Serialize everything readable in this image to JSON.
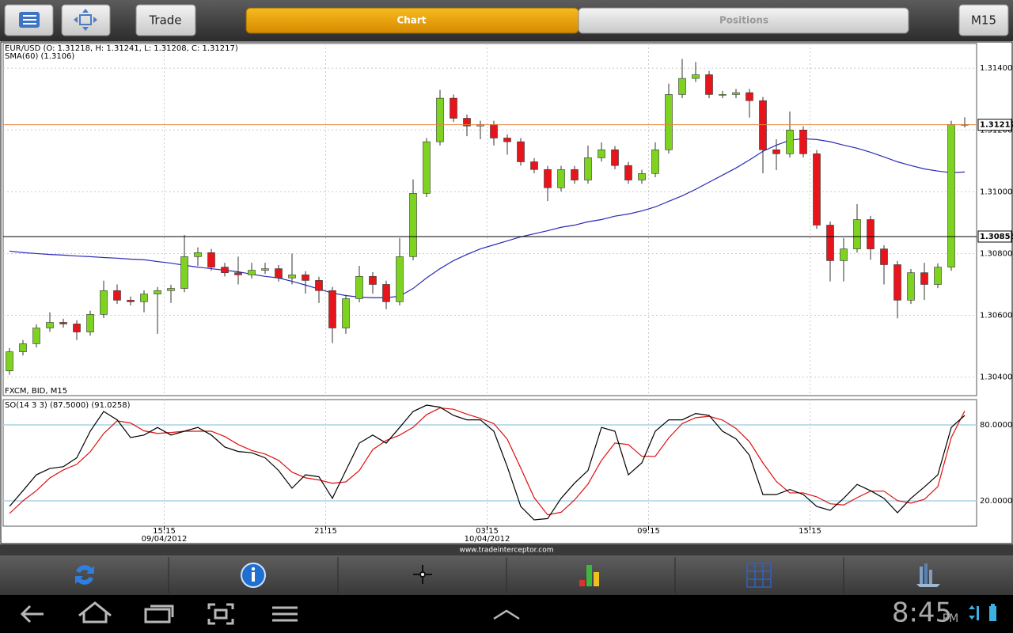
{
  "toolbar": {
    "trade": "Trade",
    "tabs": [
      "Chart",
      "Positions"
    ],
    "timeframe": "M15"
  },
  "chart_data": [
    {
      "type": "candlestick",
      "title": "EUR/USD (O: 1.31218, H: 1.31241, L: 1.31208, C: 1.31217)",
      "subtitle": "SMA(60) (1.3106)",
      "note": "FXCM, BID, M15",
      "open": [
        1.3042,
        1.30482,
        1.30508,
        1.30559,
        1.30577,
        1.30572,
        1.30546,
        1.30603,
        1.3068,
        1.30649,
        1.30644,
        1.30669,
        1.3068,
        1.30687,
        1.3079,
        1.30803,
        1.30756,
        1.30738,
        1.30731,
        1.30746,
        1.30751,
        1.30721,
        1.30731,
        1.30713,
        1.3068,
        1.30559,
        1.30654,
        1.30726,
        1.307,
        1.30644,
        1.3079,
        1.30995,
        1.31162,
        1.31303,
        1.31238,
        1.31213,
        1.31218,
        1.31174,
        1.31162,
        1.31097,
        1.31072,
        1.31013,
        1.31072,
        1.31038,
        1.3111,
        1.31136,
        1.31085,
        1.31038,
        1.31059,
        1.31136,
        1.31315,
        1.31367,
        1.31379,
        1.31315,
        1.31315,
        1.31321,
        1.31295,
        1.31136,
        1.31123,
        1.312,
        1.31123,
        1.30892,
        1.30777,
        1.30815,
        1.3091,
        1.30815,
        1.30764,
        1.30649,
        1.30738,
        1.307,
        1.30756,
        1.31218
      ],
      "high": [
        1.30494,
        1.3052,
        1.30571,
        1.3061,
        1.30589,
        1.30584,
        1.30615,
        1.30712,
        1.307,
        1.30661,
        1.30681,
        1.30692,
        1.30699,
        1.3086,
        1.3082,
        1.30815,
        1.3077,
        1.3079,
        1.3077,
        1.3077,
        1.30763,
        1.308,
        1.30743,
        1.30725,
        1.30692,
        1.30666,
        1.3076,
        1.3074,
        1.30712,
        1.3085,
        1.3104,
        1.31174,
        1.3133,
        1.31315,
        1.3125,
        1.3123,
        1.3123,
        1.31186,
        1.31174,
        1.31109,
        1.31084,
        1.31084,
        1.31084,
        1.3115,
        1.3116,
        1.31148,
        1.31097,
        1.31071,
        1.3116,
        1.3135,
        1.3143,
        1.3142,
        1.31391,
        1.31327,
        1.31333,
        1.31333,
        1.31307,
        1.3117,
        1.3126,
        1.31212,
        1.31135,
        1.30904,
        1.3085,
        1.3096,
        1.30922,
        1.30827,
        1.30776,
        1.3075,
        1.3077,
        1.30768,
        1.3123,
        1.31241
      ],
      "low": [
        1.30408,
        1.3047,
        1.30496,
        1.30547,
        1.3056,
        1.3052,
        1.30534,
        1.30591,
        1.30637,
        1.30632,
        1.3061,
        1.3054,
        1.3064,
        1.30675,
        1.3076,
        1.30744,
        1.30726,
        1.307,
        1.30719,
        1.30734,
        1.30709,
        1.307,
        1.3067,
        1.3064,
        1.3051,
        1.3054,
        1.30642,
        1.3067,
        1.3062,
        1.30632,
        1.30778,
        1.30983,
        1.3115,
        1.31226,
        1.3118,
        1.3117,
        1.3115,
        1.3112,
        1.31085,
        1.3106,
        1.3097,
        1.31001,
        1.31026,
        1.31026,
        1.31098,
        1.31073,
        1.31026,
        1.31026,
        1.31047,
        1.31124,
        1.31303,
        1.31355,
        1.31303,
        1.31303,
        1.31303,
        1.3124,
        1.3106,
        1.3107,
        1.31111,
        1.31111,
        1.3088,
        1.3071,
        1.3071,
        1.30803,
        1.3078,
        1.307,
        1.3059,
        1.30637,
        1.3065,
        1.30688,
        1.30744,
        1.31208
      ],
      "close": [
        1.30482,
        1.30508,
        1.30559,
        1.30577,
        1.30572,
        1.30546,
        1.30603,
        1.3068,
        1.30649,
        1.30644,
        1.30669,
        1.3068,
        1.30687,
        1.3079,
        1.30803,
        1.30756,
        1.30738,
        1.30731,
        1.30746,
        1.30751,
        1.30721,
        1.30731,
        1.30713,
        1.3068,
        1.30559,
        1.30654,
        1.30726,
        1.307,
        1.30644,
        1.3079,
        1.30995,
        1.31162,
        1.31303,
        1.31238,
        1.31213,
        1.31218,
        1.31174,
        1.31162,
        1.31097,
        1.31072,
        1.31013,
        1.31072,
        1.31038,
        1.3111,
        1.31136,
        1.31085,
        1.31038,
        1.31059,
        1.31136,
        1.31315,
        1.31367,
        1.31379,
        1.31315,
        1.31315,
        1.31321,
        1.31295,
        1.31136,
        1.31123,
        1.312,
        1.31123,
        1.30892,
        1.30777,
        1.30815,
        1.3091,
        1.30815,
        1.30764,
        1.30649,
        1.30738,
        1.307,
        1.30756,
        1.31218,
        1.31217
      ],
      "up_color": "#7ed321",
      "down_color": "#e8141b",
      "overlay": {
        "color": "#2a2ab8",
        "values": [
          1.30808,
          1.30803,
          1.308,
          1.30797,
          1.30795,
          1.30792,
          1.3079,
          1.30787,
          1.30785,
          1.30782,
          1.3078,
          1.30774,
          1.30769,
          1.30762,
          1.30756,
          1.30751,
          1.30746,
          1.30741,
          1.30733,
          1.30726,
          1.30721,
          1.3071,
          1.30698,
          1.30685,
          1.30672,
          1.30664,
          1.30659,
          1.30657,
          1.30657,
          1.30662,
          1.30687,
          1.30721,
          1.30751,
          1.30777,
          1.30797,
          1.30815,
          1.30828,
          1.30841,
          1.30854,
          1.30864,
          1.30874,
          1.30885,
          1.30892,
          1.30903,
          1.3091,
          1.30921,
          1.30928,
          1.30938,
          1.30951,
          1.30969,
          1.30987,
          1.31008,
          1.31031,
          1.31054,
          1.31077,
          1.31103,
          1.31131,
          1.31151,
          1.31167,
          1.31172,
          1.31169,
          1.31162,
          1.31151,
          1.31141,
          1.31128,
          1.31113,
          1.31097,
          1.31085,
          1.31074,
          1.31067,
          1.31062,
          1.31064
        ]
      },
      "price_lines": [
        {
          "value": 1.31217,
          "label": "1.31217",
          "color": "#e8823c"
        },
        {
          "value": 1.30855,
          "label": "1.30855",
          "color": "#000000"
        }
      ],
      "ylim": [
        1.3034,
        1.3148
      ],
      "yticks": [
        {
          "value": 1.304,
          "label": "1.30400"
        },
        {
          "value": 1.306,
          "label": "1.30600"
        },
        {
          "value": 1.308,
          "label": "1.30800"
        },
        {
          "value": 1.31,
          "label": "1.31000"
        },
        {
          "value": 1.312,
          "label": "1.31200"
        },
        {
          "value": 1.314,
          "label": "1.31400"
        }
      ],
      "grid": true
    },
    {
      "type": "line",
      "title": "SO(14 3 3) (87.5000) (91.0258)",
      "series": [
        {
          "color": "#000000",
          "values": [
            15.6,
            28,
            40.6,
            45.6,
            47,
            54,
            75,
            90.6,
            84,
            70,
            72,
            78,
            72,
            75,
            78,
            72,
            62.5,
            59,
            58,
            54,
            44,
            30,
            40.6,
            39,
            22,
            44,
            65.6,
            72,
            65.6,
            78,
            90.6,
            95.6,
            94,
            87.5,
            84,
            84,
            75,
            47,
            15.6,
            5,
            6,
            22,
            34,
            44,
            78,
            75,
            40.6,
            50,
            75,
            84,
            84,
            89,
            87.5,
            75,
            69,
            56,
            25,
            25,
            29,
            25,
            15.6,
            12.5,
            22,
            33,
            28,
            22,
            10.6,
            22,
            31,
            40.6,
            78,
            87.5
          ]
        },
        {
          "color": "#e01010",
          "values": [
            10,
            20,
            28.1,
            38.1,
            44.4,
            48.9,
            58.7,
            73.2,
            83.2,
            81.5,
            75.3,
            73.3,
            74,
            75,
            75,
            75,
            70.8,
            64.5,
            59.8,
            57,
            52,
            42.7,
            38.2,
            36.5,
            33.9,
            35,
            43.9,
            60.5,
            67.7,
            71.9,
            78.1,
            88.1,
            93.4,
            92.4,
            88.5,
            85.2,
            81,
            68.7,
            45.9,
            22.5,
            8.9,
            11,
            20.7,
            33.3,
            52,
            65.7,
            64.5,
            55.2,
            55.2,
            69.7,
            81,
            85.7,
            86.8,
            83.8,
            77.2,
            66.7,
            50,
            35.3,
            26.3,
            26.3,
            23.2,
            17.7,
            16.7,
            22.5,
            27.7,
            27.7,
            20.2,
            18.2,
            21.2,
            31.2,
            70,
            91.0258
          ]
        }
      ],
      "ylim": [
        0,
        100
      ],
      "yticks": [
        {
          "value": 20,
          "label": "20.0000"
        },
        {
          "value": 80,
          "label": "80.0000"
        }
      ],
      "xticks": [
        {
          "value": 11.5,
          "label": "15:15",
          "date": "09/04/2012"
        },
        {
          "value": 23.5,
          "label": "21:15"
        },
        {
          "value": 35.5,
          "label": "03:15",
          "date": "10/04/2012"
        },
        {
          "value": 47.5,
          "label": "09:15"
        },
        {
          "value": 59.5,
          "label": "15:15"
        }
      ],
      "level_color": "#a8d4e6"
    }
  ],
  "footer": "www.tradeinterceptor.com",
  "status": {
    "time": "8:45",
    "ampm": "PM"
  }
}
